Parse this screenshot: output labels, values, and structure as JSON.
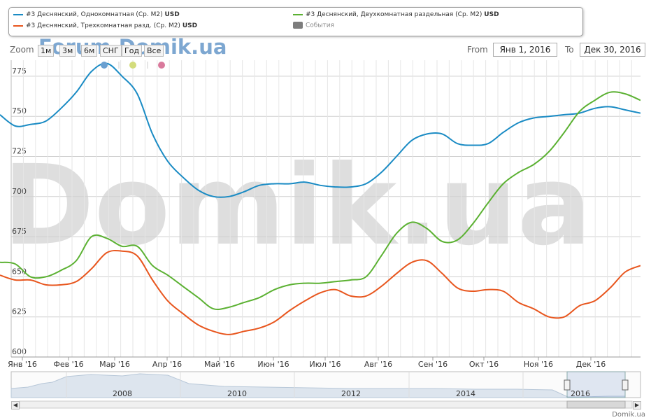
{
  "chart_data": {
    "type": "line",
    "title": "",
    "ylabel": "",
    "ylim": [
      600,
      785
    ],
    "y_ticks": [
      600,
      625,
      650,
      675,
      700,
      725,
      750,
      775
    ],
    "grid": true,
    "x_tick_labels": [
      "Янв '16",
      "Фев '16",
      "Мар '16",
      "Апр '16",
      "Май '16",
      "Июн '16",
      "Июл '16",
      "Авг '16",
      "Сен '16",
      "Окт '16",
      "Ноя '16",
      "Дек '16"
    ],
    "series": [
      {
        "name": "#3 Деснянский, Однокомнатная (Ср. М2)",
        "unit": "USD",
        "color": "#1a8bc4",
        "values": [
          751,
          744,
          745,
          747,
          755,
          765,
          778,
          783,
          775,
          764,
          739,
          722,
          712,
          704,
          700,
          700,
          703,
          707,
          708,
          708,
          709,
          707,
          706,
          706,
          708,
          715,
          725,
          735,
          739,
          739,
          733,
          732,
          733,
          740,
          746,
          749,
          750,
          751,
          752,
          755,
          756,
          754,
          752
        ]
      },
      {
        "name": "#3 Деснянский, Двухкомнатная раздельная (Ср. М2)",
        "unit": "USD",
        "color": "#5bb132",
        "values": [
          659,
          658,
          650,
          650,
          654,
          660,
          675,
          674,
          669,
          669,
          657,
          651,
          644,
          637,
          630,
          631,
          634,
          637,
          642,
          645,
          646,
          646,
          647,
          648,
          650,
          663,
          677,
          684,
          680,
          672,
          673,
          683,
          696,
          708,
          715,
          720,
          728,
          740,
          753,
          760,
          765,
          764,
          760
        ]
      },
      {
        "name": "#3 Деснянский, Трехкомнатная разд. (Ср. М2)",
        "unit": "USD",
        "color": "#e8561e",
        "values": [
          651,
          648,
          648,
          645,
          645,
          647,
          655,
          665,
          666,
          663,
          648,
          635,
          627,
          620,
          616,
          614,
          616,
          618,
          622,
          629,
          635,
          640,
          642,
          638,
          638,
          644,
          652,
          659,
          660,
          652,
          643,
          641,
          642,
          641,
          634,
          630,
          625,
          625,
          632,
          635,
          643,
          653,
          657
        ]
      }
    ],
    "events_label": "События",
    "navigator": {
      "year_labels": [
        "2008",
        "2010",
        "2012",
        "2014",
        "2016"
      ]
    }
  },
  "controls": {
    "zoom_label": "Zoom",
    "zoom_buttons": [
      "1м",
      "3м",
      "6м",
      "СНГ",
      "Год",
      "Все"
    ],
    "from_label": "From",
    "from_value": "Янв 1, 2016",
    "to_label": "To",
    "to_value": "Дек 30, 2016"
  },
  "watermark": {
    "small": "Forum.Domik.ua",
    "large": "Domik.ua"
  },
  "credit": "Domik.ua",
  "event_marker_colors": [
    "#6a9fd0",
    "#d3dc7c",
    "#d97a9c"
  ]
}
